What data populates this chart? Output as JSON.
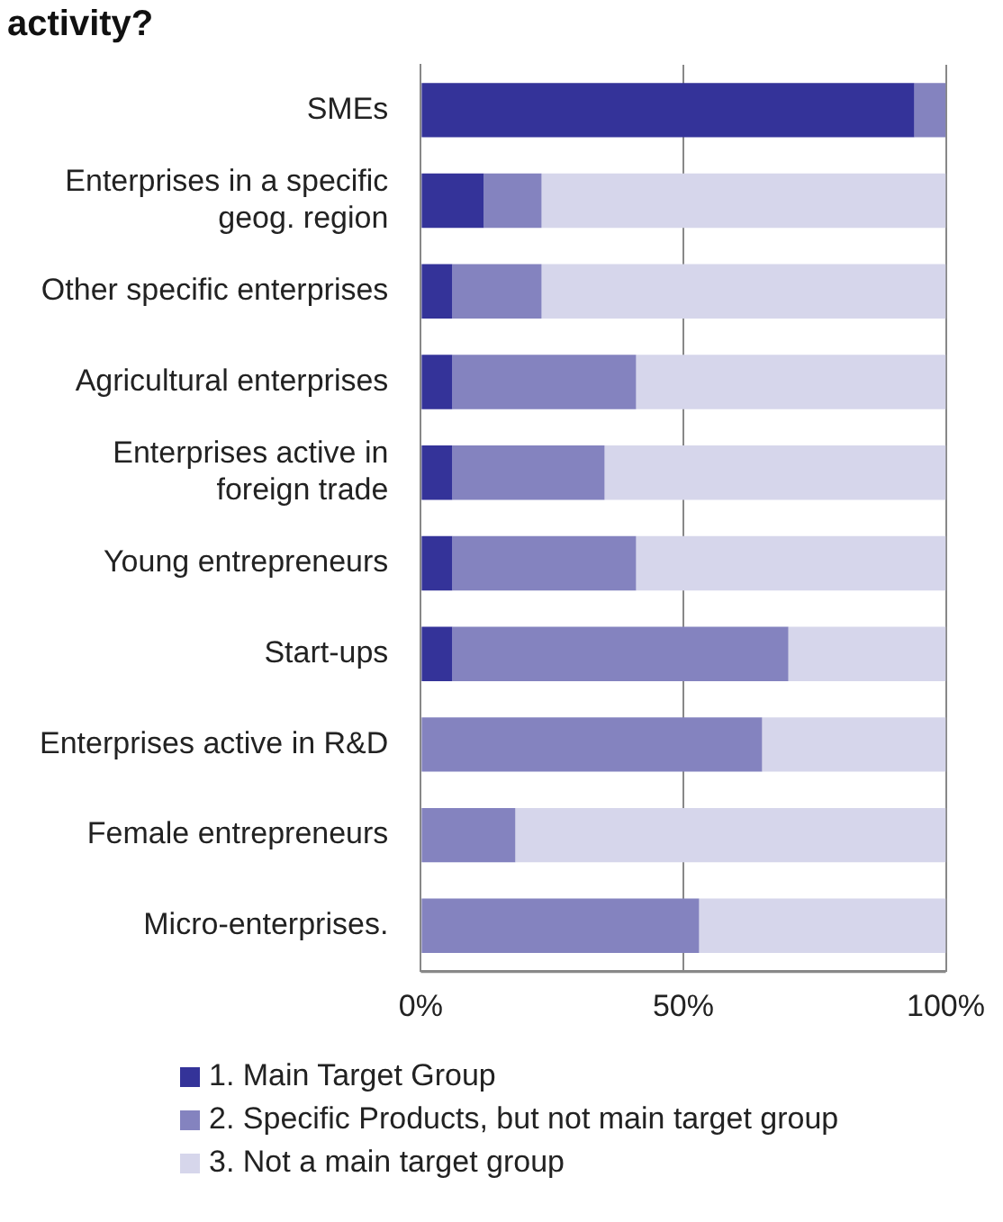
{
  "chart_data": {
    "type": "bar",
    "title": "activity?",
    "orientation": "horizontal",
    "stacked": true,
    "categories": [
      "SMEs",
      "Enterprises in a specific geog. region",
      "Other specific enterprises",
      "Agricultural enterprises",
      "Enterprises active in foreign trade",
      "Young entrepreneurs",
      "Start-ups",
      "Enterprises active in R&D",
      "Female entrepreneurs",
      "Micro-enterprises."
    ],
    "series": [
      {
        "name": "1. Main Target Group",
        "color": "#343399",
        "values": [
          94,
          12,
          6,
          6,
          6,
          6,
          6,
          0,
          0,
          0
        ]
      },
      {
        "name": "2. Specific Products, but not main target group",
        "color": "#8483bf",
        "values": [
          6,
          11,
          17,
          35,
          29,
          35,
          64,
          65,
          18,
          53
        ]
      },
      {
        "name": "3. Not a main target group",
        "color": "#d6d6eb",
        "values": [
          0,
          77,
          77,
          59,
          65,
          59,
          30,
          35,
          82,
          47
        ]
      }
    ],
    "xlim": [
      0,
      100
    ],
    "xticks": [
      {
        "value": 0,
        "label": "0%"
      },
      {
        "value": 50,
        "label": "50%"
      },
      {
        "value": 100,
        "label": "100%"
      }
    ],
    "grid": "x",
    "legend": "bottom"
  }
}
